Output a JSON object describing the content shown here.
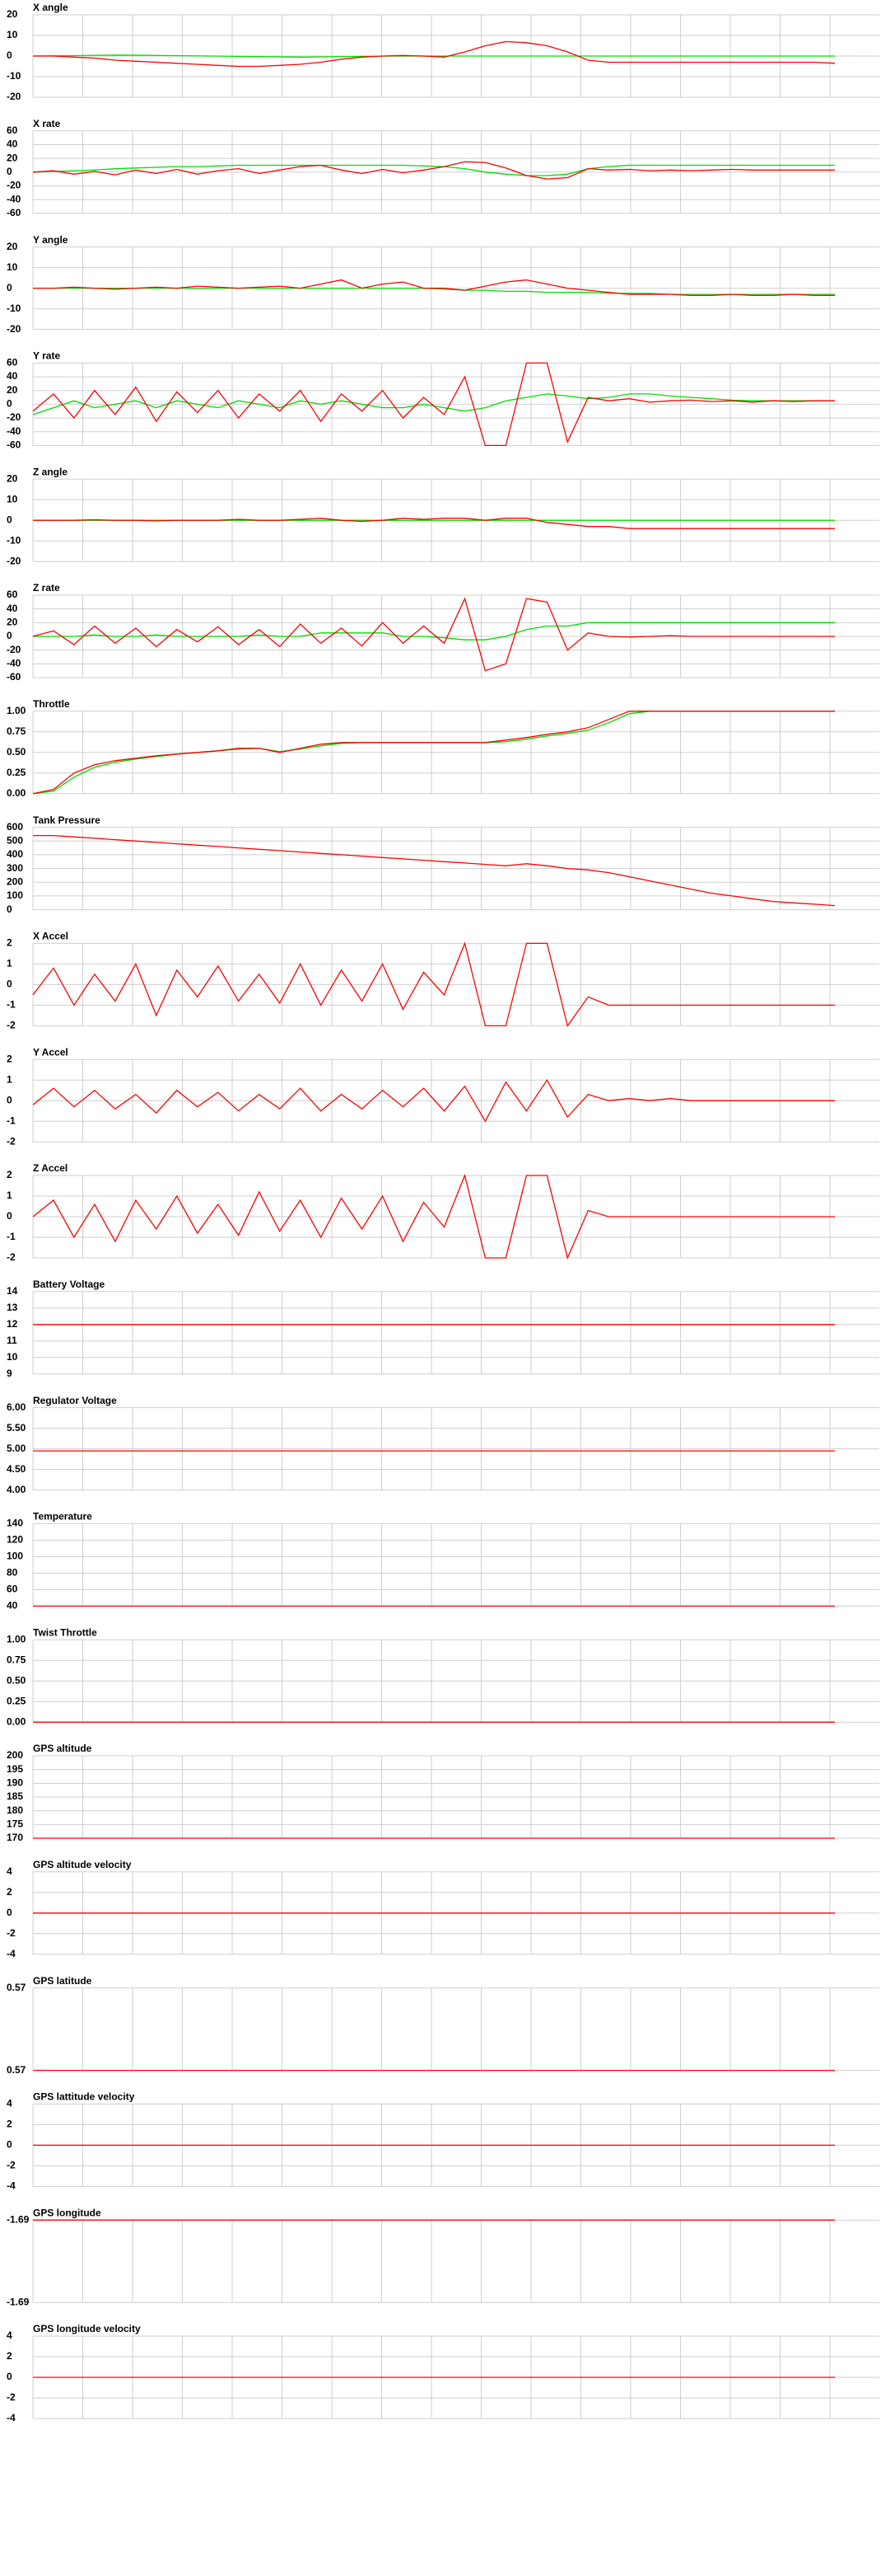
{
  "chart_data": [
    {
      "type": "line",
      "title": "X angle",
      "ylim": [
        -20,
        20
      ],
      "yticks": [
        20,
        10,
        0,
        -10,
        -20
      ],
      "series": [
        {
          "color": "#00dd00",
          "values": [
            0,
            0.5,
            0,
            -0.5,
            0,
            0,
            0,
            0,
            0,
            0
          ]
        },
        {
          "color": "#ff0000",
          "values": [
            0,
            0,
            -0.5,
            -1,
            -2,
            -2.5,
            -3,
            -3.5,
            -4,
            -4.5,
            -5,
            -5,
            -4.5,
            -4,
            -3,
            -1.5,
            -0.5,
            0,
            0.3,
            0,
            -0.5,
            2,
            5,
            7,
            6.5,
            5,
            2,
            -2,
            -3,
            -3,
            -3,
            -3,
            -3,
            -3,
            -3,
            -3,
            -3,
            -3,
            -3,
            -3.5
          ]
        }
      ]
    },
    {
      "type": "line",
      "title": "X rate",
      "ylim": [
        -60,
        60
      ],
      "yticks": [
        60,
        40,
        20,
        0,
        -20,
        -40,
        -60
      ],
      "series": [
        {
          "color": "#00dd00",
          "values": [
            0,
            1,
            2,
            3,
            5,
            6,
            7,
            8,
            8,
            9,
            10,
            10,
            10,
            10,
            10,
            10,
            10,
            10,
            10,
            9,
            8,
            5,
            0,
            -3,
            -5,
            -5,
            -3,
            5,
            8,
            10,
            10,
            10,
            10,
            10,
            10,
            10,
            10,
            10,
            10,
            10
          ]
        },
        {
          "color": "#ff0000",
          "values": [
            0,
            2,
            -3,
            1,
            -4,
            3,
            -2,
            4,
            -3,
            2,
            5,
            -2,
            3,
            8,
            10,
            3,
            -2,
            4,
            -1,
            3,
            8,
            15,
            14,
            6,
            -5,
            -10,
            -8,
            5,
            3,
            4,
            2,
            3,
            2,
            3,
            4,
            3,
            3,
            3,
            3,
            3
          ]
        }
      ]
    },
    {
      "type": "line",
      "title": "Y angle",
      "ylim": [
        -20,
        20
      ],
      "yticks": [
        20,
        10,
        0,
        -10,
        -20
      ],
      "series": [
        {
          "color": "#00dd00",
          "values": [
            0,
            0,
            0,
            0,
            0,
            0,
            0,
            0,
            0,
            0,
            0,
            0,
            0,
            0,
            0,
            0,
            0,
            0,
            0,
            0,
            -0.5,
            -1,
            -1,
            -1.5,
            -1.5,
            -2,
            -2,
            -2,
            -2.5,
            -2.5,
            -2.5,
            -3,
            -3,
            -3,
            -3,
            -3,
            -3,
            -3,
            -3,
            -3
          ]
        },
        {
          "color": "#ff0000",
          "values": [
            0,
            0,
            0.5,
            0,
            -0.5,
            0,
            0.5,
            0,
            1,
            0.5,
            0,
            0.5,
            1,
            0,
            2,
            4,
            0,
            2,
            3,
            0,
            0,
            -1,
            1,
            3,
            4,
            2,
            0,
            -1,
            -2,
            -3,
            -3,
            -3,
            -3.5,
            -3.5,
            -3,
            -3.5,
            -3.5,
            -3,
            -3.5,
            -3.5
          ]
        }
      ]
    },
    {
      "type": "line",
      "title": "Y rate",
      "ylim": [
        -60,
        60
      ],
      "yticks": [
        60,
        40,
        20,
        0,
        -20,
        -40,
        -60
      ],
      "series": [
        {
          "color": "#00dd00",
          "values": [
            -15,
            -5,
            5,
            -5,
            0,
            5,
            -5,
            5,
            0,
            -5,
            5,
            0,
            -5,
            5,
            0,
            5,
            0,
            -5,
            -5,
            0,
            -5,
            -10,
            -5,
            5,
            10,
            15,
            12,
            8,
            10,
            15,
            15,
            12,
            10,
            8,
            6,
            5,
            5,
            5,
            5,
            5
          ]
        },
        {
          "color": "#ff0000",
          "values": [
            -10,
            15,
            -20,
            20,
            -15,
            25,
            -25,
            18,
            -12,
            20,
            -20,
            15,
            -10,
            20,
            -25,
            15,
            -10,
            20,
            -20,
            10,
            -15,
            40,
            -60,
            -60,
            60,
            60,
            -55,
            10,
            5,
            8,
            3,
            5,
            6,
            4,
            5,
            3,
            5,
            4,
            5,
            5
          ]
        }
      ]
    },
    {
      "type": "line",
      "title": "Z angle",
      "ylim": [
        -20,
        20
      ],
      "yticks": [
        20,
        10,
        0,
        -10,
        -20
      ],
      "series": [
        {
          "color": "#00dd00",
          "values": [
            0,
            0,
            0,
            0,
            0,
            0,
            0,
            0,
            0,
            0
          ]
        },
        {
          "color": "#ff0000",
          "values": [
            0,
            0,
            0,
            0.3,
            0,
            0,
            -0.3,
            0,
            0,
            0,
            0.5,
            0,
            0,
            0.5,
            1,
            0,
            -0.5,
            0,
            1,
            0.5,
            1,
            1,
            0,
            1,
            1,
            -1,
            -2,
            -3,
            -3,
            -4,
            -4,
            -4,
            -4,
            -4,
            -4,
            -4,
            -4,
            -4,
            -4,
            -4
          ]
        }
      ]
    },
    {
      "type": "line",
      "title": "Z rate",
      "ylim": [
        -60,
        60
      ],
      "yticks": [
        60,
        40,
        20,
        0,
        -20,
        -40,
        -60
      ],
      "series": [
        {
          "color": "#00dd00",
          "values": [
            0,
            0,
            0,
            2,
            0,
            0,
            2,
            0,
            0,
            0,
            0,
            2,
            0,
            0,
            5,
            5,
            5,
            5,
            0,
            0,
            -2,
            -5,
            -5,
            0,
            10,
            15,
            15,
            20,
            20,
            20,
            20,
            20,
            20,
            20,
            20,
            20,
            20,
            20,
            20,
            20
          ]
        },
        {
          "color": "#ff0000",
          "values": [
            0,
            8,
            -12,
            15,
            -10,
            12,
            -15,
            10,
            -8,
            14,
            -12,
            10,
            -15,
            18,
            -10,
            12,
            -14,
            20,
            -10,
            15,
            -10,
            55,
            -50,
            -40,
            55,
            50,
            -20,
            5,
            0,
            -1,
            0,
            1,
            0,
            0,
            0,
            0,
            0,
            0,
            0,
            0
          ]
        }
      ]
    },
    {
      "type": "line",
      "title": "Throttle",
      "ylim": [
        0,
        1
      ],
      "yticks": [
        {
          "value": 1,
          "label": "1.00"
        },
        {
          "value": 0.75,
          "label": "0.75"
        },
        {
          "value": 0.5,
          "label": "0.50"
        },
        {
          "value": 0.25,
          "label": "0.25"
        },
        {
          "value": 0,
          "label": "0.00"
        }
      ],
      "series": [
        {
          "color": "#00dd00",
          "values": [
            0,
            0.03,
            0.2,
            0.32,
            0.38,
            0.42,
            0.45,
            0.48,
            0.5,
            0.52,
            0.54,
            0.55,
            0.51,
            0.54,
            0.58,
            0.61,
            0.62,
            0.62,
            0.62,
            0.62,
            0.62,
            0.62,
            0.62,
            0.63,
            0.66,
            0.7,
            0.73,
            0.77,
            0.86,
            0.97,
            1,
            1,
            1,
            1,
            1,
            1,
            1,
            1,
            1,
            1
          ]
        },
        {
          "color": "#ff0000",
          "values": [
            0,
            0.05,
            0.25,
            0.35,
            0.4,
            0.43,
            0.46,
            0.48,
            0.5,
            0.52,
            0.55,
            0.55,
            0.5,
            0.55,
            0.6,
            0.62,
            0.62,
            0.62,
            0.62,
            0.62,
            0.62,
            0.62,
            0.62,
            0.65,
            0.68,
            0.72,
            0.75,
            0.8,
            0.9,
            1,
            1,
            1,
            1,
            1,
            1,
            1,
            1,
            1,
            1,
            1
          ]
        }
      ]
    },
    {
      "type": "line",
      "title": "Tank Pressure",
      "ylim": [
        0,
        600
      ],
      "yticks": [
        600,
        500,
        400,
        300,
        200,
        100,
        0
      ],
      "series": [
        {
          "color": "#ff0000",
          "values": [
            540,
            540,
            530,
            520,
            510,
            500,
            490,
            480,
            470,
            460,
            450,
            440,
            430,
            420,
            410,
            400,
            390,
            380,
            370,
            360,
            350,
            340,
            330,
            320,
            335,
            320,
            300,
            290,
            270,
            240,
            210,
            180,
            150,
            120,
            100,
            80,
            60,
            50,
            40,
            30
          ]
        }
      ]
    },
    {
      "type": "line",
      "title": "X Accel",
      "ylim": [
        -2,
        2
      ],
      "yticks": [
        2,
        1,
        0,
        -1,
        -2
      ],
      "series": [
        {
          "color": "#ff0000",
          "values": [
            -0.5,
            0.8,
            -1,
            0.5,
            -0.8,
            1,
            -1.5,
            0.7,
            -0.6,
            0.9,
            -0.8,
            0.5,
            -0.9,
            1,
            -1,
            0.7,
            -0.8,
            1,
            -1.2,
            0.6,
            -0.5,
            2,
            -2,
            -2,
            2,
            2,
            -2,
            -0.6,
            -1,
            -1,
            -1,
            -1,
            -1,
            -1,
            -1,
            -1,
            -1,
            -1,
            -1,
            -1
          ]
        }
      ]
    },
    {
      "type": "line",
      "title": "Y Accel",
      "ylim": [
        -2,
        2
      ],
      "yticks": [
        2,
        1,
        0,
        -1,
        -2
      ],
      "series": [
        {
          "color": "#ff0000",
          "values": [
            -0.2,
            0.6,
            -0.3,
            0.5,
            -0.4,
            0.3,
            -0.6,
            0.5,
            -0.3,
            0.4,
            -0.5,
            0.3,
            -0.4,
            0.6,
            -0.5,
            0.3,
            -0.4,
            0.5,
            -0.3,
            0.6,
            -0.5,
            0.7,
            -1,
            0.9,
            -0.5,
            1,
            -0.8,
            0.3,
            0,
            0.1,
            0,
            0.1,
            0,
            0,
            0,
            0,
            0,
            0,
            0,
            0
          ]
        }
      ]
    },
    {
      "type": "line",
      "title": "Z Accel",
      "ylim": [
        -2,
        2
      ],
      "yticks": [
        2,
        1,
        0,
        -1,
        -2
      ],
      "series": [
        {
          "color": "#ff0000",
          "values": [
            0,
            0.8,
            -1,
            0.6,
            -1.2,
            0.8,
            -0.6,
            1,
            -0.8,
            0.6,
            -0.9,
            1.2,
            -0.7,
            0.8,
            -1,
            0.9,
            -0.6,
            1,
            -1.2,
            0.7,
            -0.5,
            2,
            -2,
            -2,
            2,
            2,
            -2,
            0.3,
            0,
            0,
            0,
            0,
            0,
            0,
            0,
            0,
            0,
            0,
            0,
            0
          ]
        }
      ]
    },
    {
      "type": "line",
      "title": "Battery Voltage",
      "ylim": [
        9,
        14
      ],
      "yticks": [
        14,
        13,
        12,
        11,
        10,
        9
      ],
      "series": [
        {
          "color": "#ff0000",
          "values": [
            12,
            12
          ]
        }
      ]
    },
    {
      "type": "line",
      "title": "Regulator Voltage",
      "ylim": [
        4,
        6
      ],
      "yticks": [
        {
          "value": 6,
          "label": "6.00"
        },
        {
          "value": 5.5,
          "label": "5.50"
        },
        {
          "value": 5,
          "label": "5.00"
        },
        {
          "value": 4.5,
          "label": "4.50"
        },
        {
          "value": 4,
          "label": "4.00"
        }
      ],
      "series": [
        {
          "color": "#ff0000",
          "values": [
            4.95,
            4.95
          ]
        }
      ]
    },
    {
      "type": "line",
      "title": "Temperature",
      "ylim": [
        40,
        140
      ],
      "yticks": [
        140,
        120,
        100,
        80,
        60,
        40
      ],
      "series": [
        {
          "color": "#ff0000",
          "values": [
            40,
            40
          ]
        }
      ]
    },
    {
      "type": "line",
      "title": "Twist Throttle",
      "ylim": [
        0,
        1
      ],
      "yticks": [
        {
          "value": 1,
          "label": "1.00"
        },
        {
          "value": 0.75,
          "label": "0.75"
        },
        {
          "value": 0.5,
          "label": "0.50"
        },
        {
          "value": 0.25,
          "label": "0.25"
        },
        {
          "value": 0,
          "label": "0.00"
        }
      ],
      "series": [
        {
          "color": "#ff0000",
          "values": [
            0,
            0
          ]
        }
      ]
    },
    {
      "type": "line",
      "title": "GPS altitude",
      "ylim": [
        170,
        200
      ],
      "yticks": [
        200,
        195,
        190,
        185,
        180,
        175,
        170
      ],
      "series": [
        {
          "color": "#ff0000",
          "values": [
            170,
            170
          ]
        }
      ]
    },
    {
      "type": "line",
      "title": "GPS altitude velocity",
      "ylim": [
        -4,
        4
      ],
      "yticks": [
        4,
        2,
        0,
        -2,
        -4
      ],
      "series": [
        {
          "color": "#ff0000",
          "values": [
            0,
            0
          ]
        }
      ]
    },
    {
      "type": "line",
      "title": "GPS latitude",
      "ylim": [
        0.57,
        0.574
      ],
      "yticks": [
        {
          "value": 0.574,
          "label": "0.57"
        },
        {
          "value": 0.57,
          "label": "0.57"
        }
      ],
      "series": [
        {
          "color": "#ff0000",
          "values": [
            0.57,
            0.57
          ]
        }
      ]
    },
    {
      "type": "line",
      "title": "GPS lattitude velocity",
      "ylim": [
        -4,
        4
      ],
      "yticks": [
        4,
        2,
        0,
        -2,
        -4
      ],
      "series": [
        {
          "color": "#ff0000",
          "values": [
            0,
            0
          ]
        }
      ]
    },
    {
      "type": "line",
      "title": "GPS longitude",
      "ylim": [
        -1.694,
        -1.686
      ],
      "yticks": [
        {
          "value": -1.686,
          "label": "-1.69"
        },
        {
          "value": -1.694,
          "label": "-1.69"
        }
      ],
      "series": [
        {
          "color": "#ff0000",
          "values": [
            -1.686,
            -1.686
          ]
        }
      ]
    },
    {
      "type": "line",
      "title": "GPS longitude velocity",
      "ylim": [
        -4,
        4
      ],
      "yticks": [
        4,
        2,
        0,
        -2,
        -4
      ],
      "series": [
        {
          "color": "#ff0000",
          "values": [
            0,
            0
          ]
        }
      ]
    }
  ]
}
